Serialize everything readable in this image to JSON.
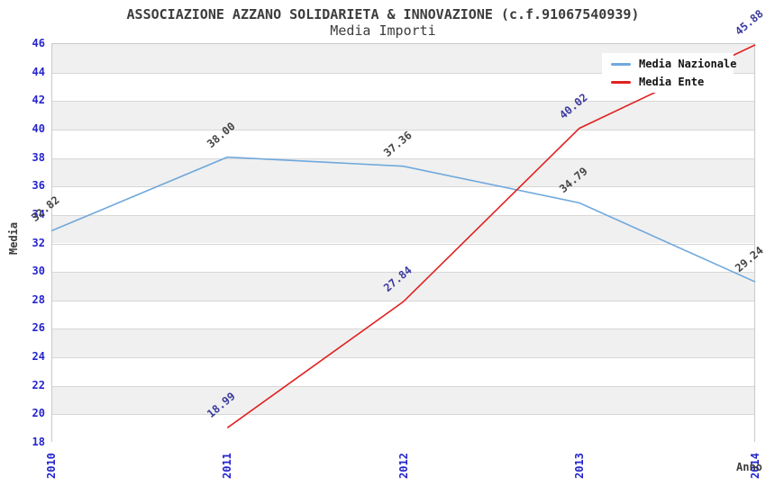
{
  "chart_data": {
    "type": "line",
    "title": "ASSOCIAZIONE AZZANO SOLIDARIETA & INNOVAZIONE (c.f.91067540939)",
    "subtitle": "Media Importi",
    "x": [
      "2010",
      "2011",
      "2012",
      "2013",
      "2014"
    ],
    "series": [
      {
        "name": "Media Nazionale",
        "color": "#6FA8DC",
        "label_color": "#454545",
        "values": [
          32.82,
          38.0,
          37.36,
          34.79,
          29.24
        ]
      },
      {
        "name": "Media Ente",
        "color": "#E12120",
        "label_color": "#3A3A9E",
        "values": [
          null,
          18.99,
          27.84,
          40.02,
          45.88
        ]
      }
    ],
    "xlabel": "Anno",
    "ylabel": "Media",
    "ylim": [
      18,
      46
    ],
    "ytick_step": 2,
    "grid": true,
    "legend_position": "top-right",
    "colors": {
      "band": "#f0f0f0",
      "gridline": "#d7d7d7",
      "plot_border": "#c9c9c9",
      "tick_label": "#2424ce",
      "axis_title": "#3c3c3c",
      "legend_text": "#111111"
    }
  }
}
